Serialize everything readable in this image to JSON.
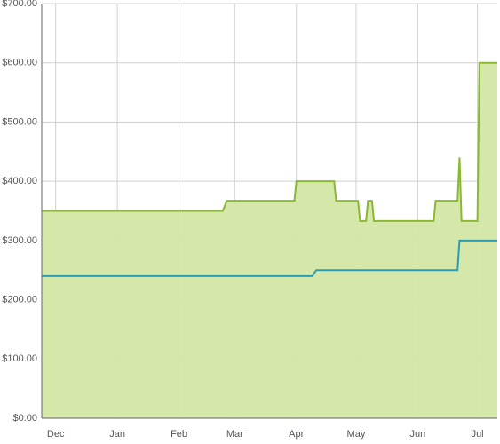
{
  "chart_data": {
    "type": "line",
    "xlim": [
      -7,
      222
    ],
    "xticks": [
      {
        "value": 0,
        "label": "Dec"
      },
      {
        "value": 31,
        "label": "Jan"
      },
      {
        "value": 62,
        "label": "Feb"
      },
      {
        "value": 90,
        "label": "Mar"
      },
      {
        "value": 121,
        "label": "Apr"
      },
      {
        "value": 151,
        "label": "May"
      },
      {
        "value": 182,
        "label": "Jun"
      },
      {
        "value": 212,
        "label": "Jul"
      }
    ],
    "ylim": [
      0,
      700
    ],
    "yticks": [
      {
        "value": 0,
        "label": "$0.00"
      },
      {
        "value": 100,
        "label": "$100.00"
      },
      {
        "value": 200,
        "label": "$200.00"
      },
      {
        "value": 300,
        "label": "$300.00"
      },
      {
        "value": 400,
        "label": "$400.00"
      },
      {
        "value": 500,
        "label": "$500.00"
      },
      {
        "value": 600,
        "label": "$600.00"
      },
      {
        "value": 700,
        "label": "$700.00"
      }
    ],
    "grid": true,
    "series": [
      {
        "color": "#8ab832",
        "fill": "#d4e6a5",
        "x": [
          -7,
          84,
          86,
          120,
          121,
          140,
          141,
          152,
          153,
          156,
          157,
          159,
          160,
          190,
          191,
          202,
          203,
          204,
          212,
          213,
          222
        ],
        "values": [
          350,
          350,
          367,
          367,
          400,
          400,
          367,
          367,
          333,
          333,
          367,
          367,
          333,
          333,
          367,
          367,
          440,
          333,
          333,
          600,
          600
        ]
      },
      {
        "color": "#2a9db0",
        "x": [
          -7,
          129,
          131,
          202,
          203,
          222
        ],
        "values": [
          240,
          240,
          250,
          250,
          300,
          300
        ]
      }
    ]
  }
}
